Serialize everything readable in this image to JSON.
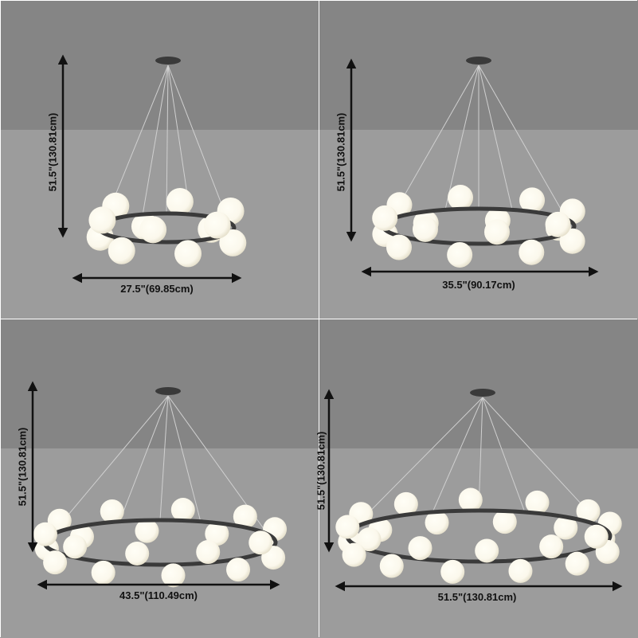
{
  "panels": [
    {
      "height_label": "51.5\"(130.81cm)",
      "width_label": "27.5\"(69.85cm)"
    },
    {
      "height_label": "51.5\"(130.81cm)",
      "width_label": "35.5\"(90.17cm)"
    },
    {
      "height_label": "51.5\"(130.81cm)",
      "width_label": "43.5\"(110.49cm)"
    },
    {
      "height_label": "51.5\"(130.81cm)",
      "width_label": "51.5\"(130.81cm)"
    }
  ],
  "colors": {
    "ceiling": "#858585",
    "wall": "#9c9c9c",
    "frame": "#3a3a3a",
    "globe": "#fbf8ec",
    "arrow": "#111111"
  }
}
